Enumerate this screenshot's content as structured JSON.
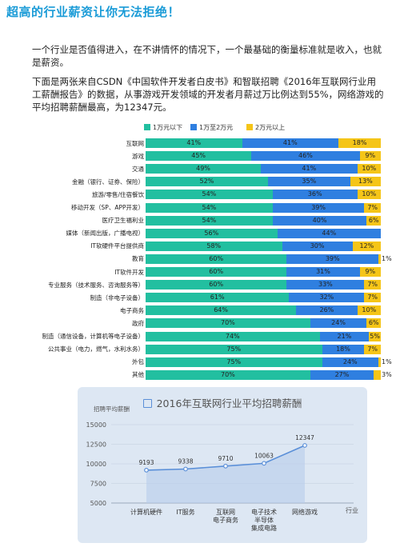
{
  "headline": "超高的行业薪资让你无法拒绝！",
  "paragraph1": "一个行业是否值得进入，在不讲情怀的情况下，一个最基础的衡量标准就是收入，也就是薪资。",
  "paragraph2": "下面是两张来自CSDN《中国软件开发者白皮书》和智联招聘《2016年互联网行业用工薪酬报告》的数据，从事游戏开发领域的开发者月薪过万比例达到55%，网络游戏的平均招聘薪酬最高，为12347元。",
  "chart_data": [
    {
      "type": "bar",
      "orientation": "horizontal-stacked-percent",
      "legend_position": "top",
      "series": [
        {
          "name": "1万元以下",
          "color": "#22bfa0"
        },
        {
          "name": "1万至2万元",
          "color": "#2f7fe0"
        },
        {
          "name": "2万元以上",
          "color": "#f5c518"
        }
      ],
      "rows": [
        {
          "label": "互联网",
          "values": [
            41,
            41,
            18
          ]
        },
        {
          "label": "游戏",
          "values": [
            45,
            46,
            9
          ]
        },
        {
          "label": "交通",
          "values": [
            49,
            41,
            10
          ]
        },
        {
          "label": "金融（银行、证券、保险）",
          "values": [
            52,
            35,
            13
          ]
        },
        {
          "label": "旅游/零售/住宿餐饮",
          "values": [
            54,
            36,
            10
          ]
        },
        {
          "label": "移动开发（SP、APP开发）",
          "values": [
            54,
            39,
            7
          ]
        },
        {
          "label": "医疗卫生福利业",
          "values": [
            54,
            40,
            6
          ]
        },
        {
          "label": "媒体（新闻出版，广播电视）",
          "values": [
            56,
            44,
            null
          ]
        },
        {
          "label": "IT软硬件平台提供商",
          "values": [
            58,
            30,
            12
          ]
        },
        {
          "label": "教育",
          "values": [
            60,
            39,
            1
          ]
        },
        {
          "label": "IT软件开发",
          "values": [
            60,
            31,
            9
          ]
        },
        {
          "label": "专业服务（技术服务、咨询服务等）",
          "values": [
            60,
            33,
            7
          ]
        },
        {
          "label": "制造（非电子设备）",
          "values": [
            61,
            32,
            7
          ]
        },
        {
          "label": "电子商务",
          "values": [
            64,
            26,
            10
          ]
        },
        {
          "label": "政府",
          "values": [
            70,
            24,
            6
          ]
        },
        {
          "label": "制造（通信设备，计算机等电子设备）",
          "values": [
            74,
            21,
            5
          ]
        },
        {
          "label": "公共事业（电力，燃气，水利水务）",
          "values": [
            75,
            18,
            7
          ]
        },
        {
          "label": "外包",
          "values": [
            75,
            24,
            1
          ]
        },
        {
          "label": "其他",
          "values": [
            70,
            27,
            3
          ]
        }
      ]
    },
    {
      "type": "line",
      "title": "2016年互联网行业平均招聘薪酬",
      "ylabel": "招聘平均薪酬",
      "xlabel": "行业",
      "ylim": [
        5000,
        15000
      ],
      "yticks": [
        5000,
        7500,
        10000,
        12500,
        15000
      ],
      "grid": true,
      "categories": [
        "计算机硬件",
        "IT服务",
        "互联网\n电子商务",
        "电子技术\n半导体\n集成电路",
        "网络游戏"
      ],
      "values": [
        9193,
        9338,
        9710,
        10063,
        12347
      ],
      "line_color": "#5a8fd8"
    }
  ]
}
